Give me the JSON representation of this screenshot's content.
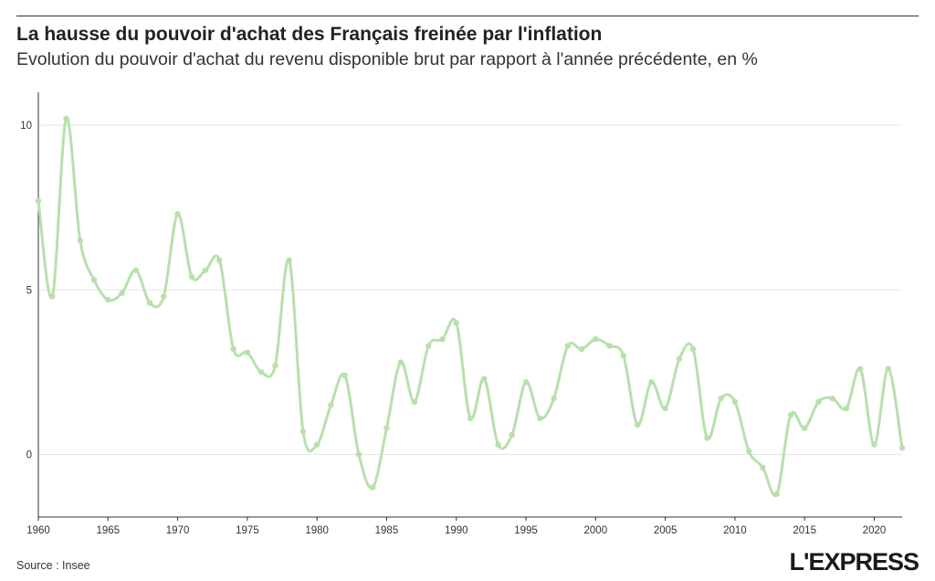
{
  "header": {
    "title": "La hausse du pouvoir d'achat des Français freinée par l'inflation",
    "subtitle": "Evolution du pouvoir d'achat du revenu disponible brut par rapport à l'année précédente, en %"
  },
  "footer": {
    "source": "Source : Insee",
    "logo": "L'EXPRESS"
  },
  "chart_data": {
    "type": "line",
    "title": "La hausse du pouvoir d'achat des Français freinée par l'inflation",
    "subtitle": "Evolution du pouvoir d'achat du revenu disponible brut par rapport à l'année précédente, en %",
    "xlabel": "",
    "ylabel": "",
    "xlim": [
      1960,
      2022
    ],
    "ylim": [
      -1.9,
      11
    ],
    "x_ticks": [
      1960,
      1965,
      1970,
      1975,
      1980,
      1985,
      1990,
      1995,
      2000,
      2005,
      2010,
      2015,
      2020
    ],
    "y_ticks": [
      0,
      5,
      10
    ],
    "grid": "horizontal",
    "line_color": "#b8e0ad",
    "x": [
      1960,
      1961,
      1962,
      1963,
      1964,
      1965,
      1966,
      1967,
      1968,
      1969,
      1970,
      1971,
      1972,
      1973,
      1974,
      1975,
      1976,
      1977,
      1978,
      1979,
      1980,
      1981,
      1982,
      1983,
      1984,
      1985,
      1986,
      1987,
      1988,
      1989,
      1990,
      1991,
      1992,
      1993,
      1994,
      1995,
      1996,
      1997,
      1998,
      1999,
      2000,
      2001,
      2002,
      2003,
      2004,
      2005,
      2006,
      2007,
      2008,
      2009,
      2010,
      2011,
      2012,
      2013,
      2014,
      2015,
      2016,
      2017,
      2018,
      2019,
      2020,
      2021,
      2022
    ],
    "values": [
      7.7,
      4.8,
      10.2,
      6.5,
      5.3,
      4.7,
      4.9,
      5.6,
      4.6,
      4.8,
      7.3,
      5.4,
      5.6,
      5.9,
      3.2,
      3.1,
      2.5,
      2.7,
      5.9,
      0.7,
      0.3,
      1.5,
      2.4,
      0.0,
      -1.0,
      0.8,
      2.8,
      1.6,
      3.3,
      3.5,
      4.0,
      1.1,
      2.3,
      0.3,
      0.6,
      2.2,
      1.1,
      1.7,
      3.3,
      3.2,
      3.5,
      3.3,
      3.0,
      0.9,
      2.2,
      1.4,
      2.9,
      3.2,
      0.5,
      1.7,
      1.6,
      0.1,
      -0.4,
      -1.2,
      1.2,
      0.8,
      1.6,
      1.7,
      1.4,
      2.6,
      0.3,
      2.6,
      0.2
    ]
  }
}
